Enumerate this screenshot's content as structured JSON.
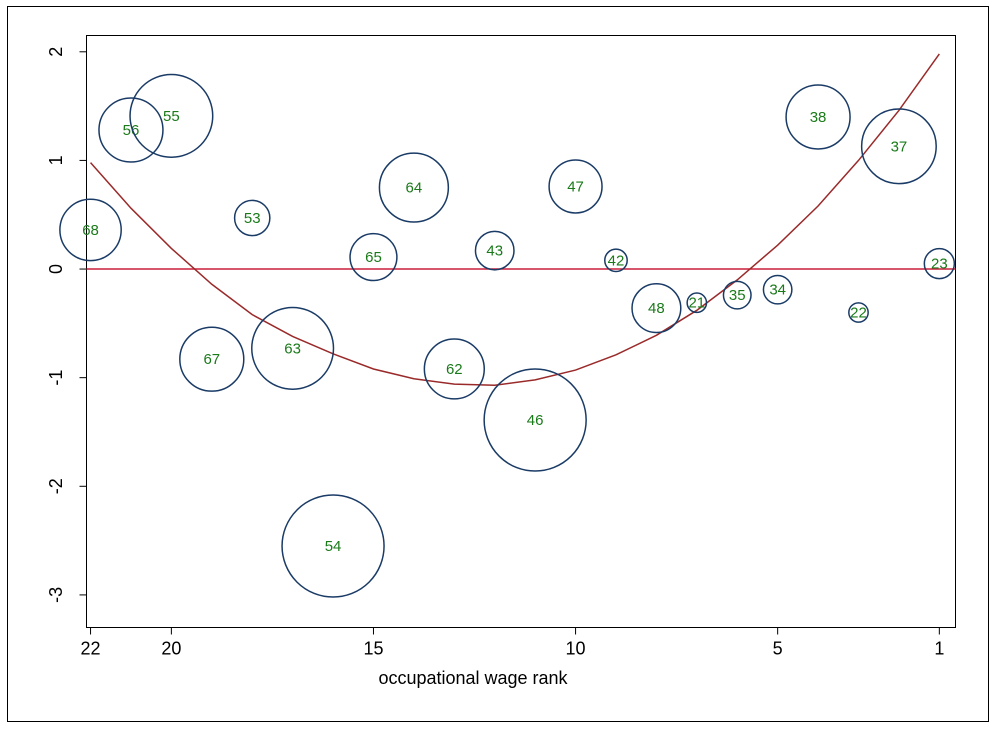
{
  "chart_data": {
    "type": "scatter",
    "title": "",
    "xlabel": "occupational wage rank",
    "ylabel": "",
    "x_reversed": true,
    "xlim": [
      22.1,
      0.6
    ],
    "ylim": [
      -3.3,
      2.15
    ],
    "x_ticks": [
      22,
      20,
      15,
      10,
      5,
      1
    ],
    "y_ticks": [
      -3,
      -2,
      -1,
      0,
      1,
      2
    ],
    "y_tick_rotation": -90,
    "grid": false,
    "legend": "none",
    "colors": {
      "bubble_outline": "#1a3b66",
      "bubble_label": "#1a7a1a",
      "zero_line": "#cc1f3a",
      "fit_curve": "#9a2a2a"
    },
    "reference_line": {
      "y": 0
    },
    "points": [
      {
        "label": "68",
        "x": 22,
        "y": 0.36,
        "size": 0.9
      },
      {
        "label": "56",
        "x": 21,
        "y": 1.28,
        "size": 1.0
      },
      {
        "label": "55",
        "x": 20,
        "y": 1.41,
        "size": 1.85
      },
      {
        "label": "67",
        "x": 19,
        "y": -0.83,
        "size": 1.0
      },
      {
        "label": "53",
        "x": 18,
        "y": 0.47,
        "size": 0.2
      },
      {
        "label": "63",
        "x": 17,
        "y": -0.73,
        "size": 1.8
      },
      {
        "label": "54",
        "x": 16,
        "y": -2.55,
        "size": 3.0
      },
      {
        "label": "65",
        "x": 15,
        "y": 0.11,
        "size": 0.45
      },
      {
        "label": "64",
        "x": 14,
        "y": 0.75,
        "size": 1.2
      },
      {
        "label": "62",
        "x": 13,
        "y": -0.92,
        "size": 0.85
      },
      {
        "label": "43",
        "x": 12,
        "y": 0.17,
        "size": 0.26
      },
      {
        "label": "46",
        "x": 11,
        "y": -1.39,
        "size": 3.0
      },
      {
        "label": "47",
        "x": 10,
        "y": 0.76,
        "size": 0.62
      },
      {
        "label": "42",
        "x": 9,
        "y": 0.08,
        "size": 0.04
      },
      {
        "label": "48",
        "x": 8,
        "y": -0.36,
        "size": 0.5
      },
      {
        "label": "21",
        "x": 7,
        "y": -0.31,
        "size": 0.02
      },
      {
        "label": "35",
        "x": 6,
        "y": -0.24,
        "size": 0.09
      },
      {
        "label": "34",
        "x": 5,
        "y": -0.19,
        "size": 0.1
      },
      {
        "label": "38",
        "x": 4,
        "y": 1.4,
        "size": 1.0
      },
      {
        "label": "22",
        "x": 3,
        "y": -0.4,
        "size": 0.02
      },
      {
        "label": "37",
        "x": 2,
        "y": 1.13,
        "size": 1.45
      },
      {
        "label": "23",
        "x": 1,
        "y": 0.05,
        "size": 0.12
      }
    ],
    "fit_curve": {
      "type": "quadratic",
      "x": [
        22,
        21,
        20,
        19,
        18,
        17,
        16,
        15,
        14,
        13,
        12,
        11,
        10,
        9,
        8,
        7,
        6,
        5,
        4,
        3,
        2,
        1
      ],
      "y": [
        0.98,
        0.56,
        0.19,
        -0.14,
        -0.42,
        -0.62,
        -0.78,
        -0.92,
        -1.01,
        -1.06,
        -1.07,
        -1.02,
        -0.93,
        -0.79,
        -0.61,
        -0.38,
        -0.1,
        0.22,
        0.58,
        1.0,
        1.46,
        1.98
      ]
    }
  }
}
